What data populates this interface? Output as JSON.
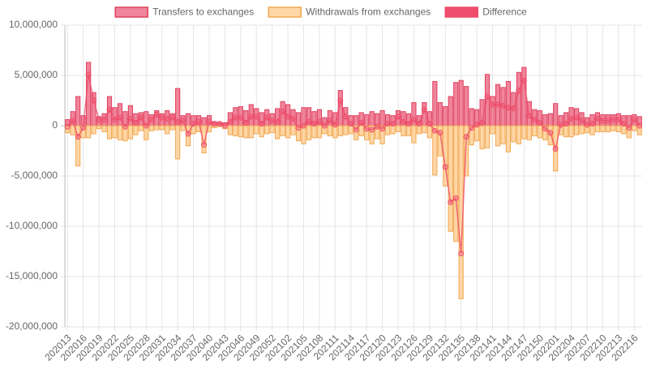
{
  "chart_data": {
    "type": "bar",
    "categories": [
      "202013",
      null,
      null,
      "202016",
      null,
      null,
      "202019",
      null,
      null,
      "202022",
      null,
      null,
      "202025",
      null,
      null,
      "202028",
      null,
      null,
      "202031",
      null,
      null,
      "202034",
      null,
      null,
      "202037",
      null,
      null,
      "202040",
      null,
      null,
      "202043",
      null,
      null,
      "202046",
      null,
      null,
      "202049",
      null,
      null,
      "202052",
      null,
      null,
      "202102",
      null,
      null,
      "202105",
      null,
      null,
      "202108",
      null,
      null,
      "202111",
      null,
      null,
      "202114",
      null,
      null,
      "202117",
      null,
      null,
      "202120",
      null,
      null,
      "202123",
      null,
      null,
      "202126",
      null,
      null,
      "202129",
      null,
      null,
      "202132",
      null,
      null,
      "202135",
      null,
      null,
      "202138",
      null,
      null,
      "202141",
      null,
      null,
      "202144",
      null,
      null,
      "202147",
      null,
      null,
      "202150",
      null,
      null,
      "202201",
      null,
      null,
      "202204",
      null,
      null,
      "202207",
      null,
      null,
      "202210",
      null,
      null,
      "202213",
      null,
      null,
      "202216",
      null
    ],
    "series": [
      {
        "name": "Transfers to exchanges",
        "type": "bar",
        "color": "#f0859b",
        "border": "#e0405f",
        "values": [
          600000,
          1400000,
          2900000,
          1000000,
          6300000,
          3300000,
          900000,
          1200000,
          2900000,
          1800000,
          2200000,
          1400000,
          2000000,
          1200000,
          1300000,
          1400000,
          1100000,
          1500000,
          1200000,
          1500000,
          1200000,
          3700000,
          1000000,
          1200000,
          1000000,
          1000000,
          800000,
          1000000,
          400000,
          300000,
          300000,
          1300000,
          1800000,
          1900000,
          1500000,
          2100000,
          1700000,
          1300000,
          1600000,
          1200000,
          1700000,
          2400000,
          2100000,
          1600000,
          1300000,
          1800000,
          1800000,
          1400000,
          1600000,
          800000,
          1500000,
          1300000,
          3500000,
          1800000,
          1000000,
          1000000,
          1300000,
          1100000,
          1400000,
          1200000,
          1500000,
          1100000,
          1000000,
          1500000,
          1400000,
          1200000,
          2300000,
          1000000,
          2300000,
          1400000,
          4400000,
          2300000,
          1900000,
          2900000,
          4300000,
          4500000,
          3900000,
          1700000,
          1600000,
          2600000,
          5100000,
          2900000,
          4100000,
          3800000,
          4400000,
          3300000,
          5300000,
          5800000,
          2400000,
          1600000,
          1500000,
          1100000,
          1200000,
          2200000,
          1000000,
          1300000,
          1800000,
          1700000,
          1300000,
          800000,
          1100000,
          1300000,
          1100000,
          1100000,
          1100000,
          1200000,
          1000000,
          1000000,
          1100000,
          900000
        ]
      },
      {
        "name": "Withdrawals from exchanges",
        "type": "bar",
        "color": "#ffd6a6",
        "border": "#f0a850",
        "values": [
          -700000,
          -900000,
          -4000000,
          -1200000,
          -1200000,
          -800000,
          -300000,
          -600000,
          -1300000,
          -1200000,
          -1400000,
          -1500000,
          -1300000,
          -900000,
          -500000,
          -1400000,
          -500000,
          -400000,
          -400000,
          -800000,
          -400000,
          -3300000,
          -500000,
          -2000000,
          -800000,
          -600000,
          -2700000,
          -600000,
          -200000,
          -100000,
          -300000,
          -900000,
          -1000000,
          -1100000,
          -1200000,
          -1200000,
          -800000,
          -1100000,
          -800000,
          -700000,
          -1300000,
          -1000000,
          -1200000,
          -900000,
          -1500000,
          -1800000,
          -1400000,
          -1200000,
          -1200000,
          -800000,
          -1000000,
          -1200000,
          -1000000,
          -900000,
          -800000,
          -1400000,
          -1000000,
          -1400000,
          -1800000,
          -1300000,
          -1800000,
          -900000,
          -800000,
          -600000,
          -1000000,
          -1000000,
          -1700000,
          -800000,
          -700000,
          -1200000,
          -4900000,
          -3000000,
          -6000000,
          -10500000,
          -11500000,
          -17200000,
          -5000000,
          -1900000,
          -1500000,
          -2300000,
          -2200000,
          -800000,
          -2000000,
          -1800000,
          -2600000,
          -1600000,
          -1800000,
          -1300000,
          -1400000,
          -1000000,
          -1200000,
          -1400000,
          -1900000,
          -4500000,
          -900000,
          -1100000,
          -1100000,
          -900000,
          -800000,
          -700000,
          -900000,
          -600000,
          -600000,
          -600000,
          -500000,
          -600000,
          -800000,
          -1200000,
          -500000,
          -900000
        ]
      },
      {
        "name": "Difference",
        "type": "line",
        "color": "#ee4d6b",
        "border": "#ee4d6b",
        "values": [
          -100000,
          500000,
          -1100000,
          -200000,
          5100000,
          2500000,
          600000,
          600000,
          1600000,
          600000,
          800000,
          -100000,
          700000,
          300000,
          800000,
          0,
          600000,
          1100000,
          800000,
          700000,
          800000,
          400000,
          500000,
          -800000,
          200000,
          400000,
          -1900000,
          400000,
          200000,
          200000,
          0,
          400000,
          800000,
          800000,
          300000,
          900000,
          900000,
          200000,
          800000,
          500000,
          400000,
          1400000,
          900000,
          700000,
          -200000,
          0,
          400000,
          200000,
          400000,
          0,
          500000,
          100000,
          2500000,
          900000,
          200000,
          -400000,
          300000,
          -300000,
          -400000,
          -100000,
          -300000,
          200000,
          200000,
          900000,
          400000,
          200000,
          600000,
          200000,
          1600000,
          200000,
          -500000,
          -700000,
          -4100000,
          -7600000,
          -7200000,
          -12700000,
          -1100000,
          -200000,
          100000,
          300000,
          2900000,
          2100000,
          2100000,
          2000000,
          1800000,
          1700000,
          3500000,
          4500000,
          1000000,
          600000,
          300000,
          -300000,
          -700000,
          -2300000,
          100000,
          200000,
          700000,
          800000,
          500000,
          100000,
          200000,
          700000,
          500000,
          500000,
          600000,
          600000,
          200000,
          -200000,
          600000,
          0
        ]
      }
    ],
    "ylim": [
      -20000000,
      10000000
    ],
    "yticks": [
      {
        "value": -20000000,
        "label": "-20,000,000"
      },
      {
        "value": -15000000,
        "label": "-15,000,000"
      },
      {
        "value": -10000000,
        "label": "-10,000,000"
      },
      {
        "value": -5000000,
        "label": "-5,000,000"
      },
      0,
      {
        "value": 5000000,
        "label": "5,000,000"
      },
      {
        "value": 10000000,
        "label": "10,000,000"
      }
    ],
    "grid": true,
    "stacked": true,
    "legend": "top"
  }
}
